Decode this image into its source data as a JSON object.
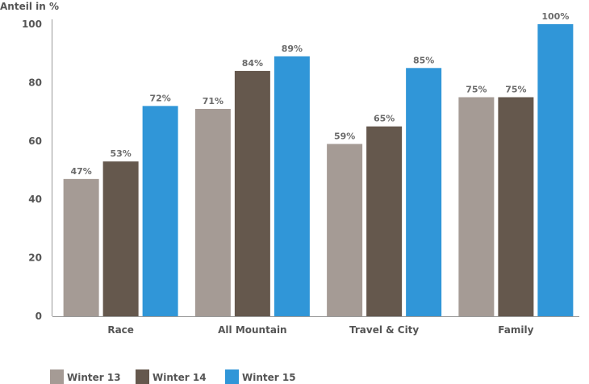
{
  "chart_data": {
    "type": "bar",
    "title": "",
    "ylabel": "Anteil in %",
    "xlabel": "",
    "ylim": [
      0,
      100
    ],
    "yticks": [
      0,
      20,
      40,
      60,
      80,
      100
    ],
    "categories": [
      "Race",
      "All Mountain",
      "Travel & City",
      "Family"
    ],
    "series": [
      {
        "name": "Winter 13",
        "color": "#a59b95",
        "values": [
          47,
          71,
          59,
          75
        ],
        "labels": [
          "47%",
          "71%",
          "59%",
          "75%"
        ]
      },
      {
        "name": "Winter 14",
        "color": "#65584d",
        "values": [
          53,
          84,
          65,
          75
        ],
        "labels": [
          "53%",
          "84%",
          "65%",
          "75%"
        ]
      },
      {
        "name": "Winter 15",
        "color": "#3096d8",
        "values": [
          72,
          89,
          85,
          100
        ],
        "labels": [
          "72%",
          "89%",
          "85%",
          "100%"
        ]
      }
    ],
    "grid": false,
    "legend_position": "bottom-left"
  }
}
